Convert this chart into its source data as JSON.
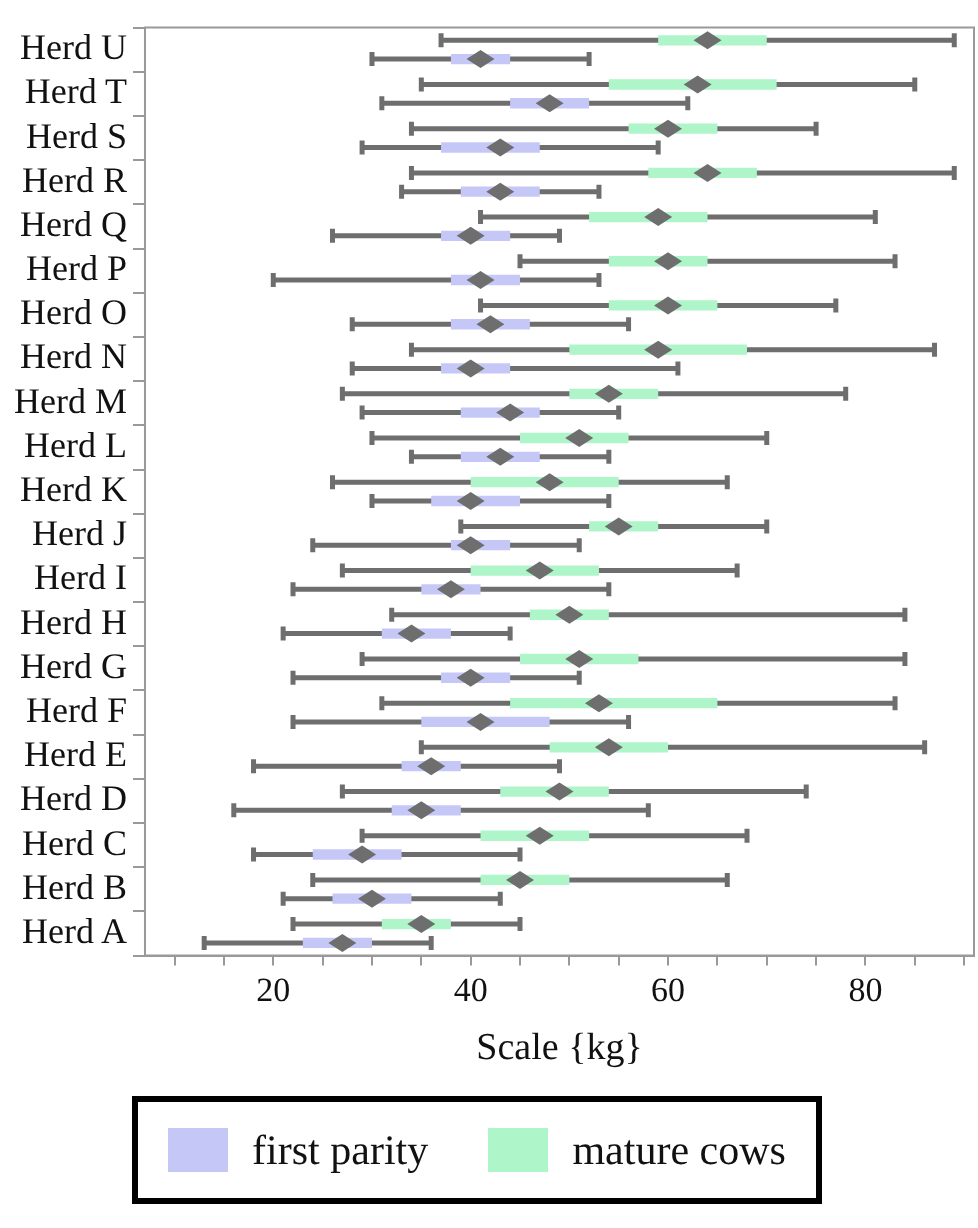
{
  "chart_data": {
    "type": "box",
    "orientation": "horizontal",
    "xlabel": "Scale {kg}",
    "legend": "bottom",
    "categories": [
      "Herd U",
      "Herd T",
      "Herd S",
      "Herd R",
      "Herd Q",
      "Herd P",
      "Herd O",
      "Herd N",
      "Herd M",
      "Herd L",
      "Herd K",
      "Herd J",
      "Herd I",
      "Herd H",
      "Herd G",
      "Herd F",
      "Herd E",
      "Herd D",
      "Herd C",
      "Herd B",
      "Herd A"
    ],
    "xlim": [
      7,
      91
    ],
    "xticks": [
      {
        "value": 10,
        "label": null
      },
      {
        "value": 15,
        "label": null
      },
      20,
      {
        "value": 25,
        "label": null
      },
      {
        "value": 30,
        "label": null
      },
      {
        "value": 35,
        "label": null
      },
      40,
      {
        "value": 45,
        "label": null
      },
      {
        "value": 50,
        "label": null
      },
      {
        "value": 55,
        "label": null
      },
      60,
      {
        "value": 65,
        "label": null
      },
      {
        "value": 70,
        "label": null
      },
      {
        "value": 75,
        "label": null
      },
      80,
      {
        "value": 85,
        "label": null
      },
      {
        "value": 90,
        "label": null
      }
    ],
    "series": [
      {
        "name": "first parity",
        "color": "#c5c8f7",
        "boxes": [
          {
            "low": 30,
            "q1": 38,
            "median": 41,
            "q3": 44,
            "high": 52
          },
          {
            "low": 31,
            "q1": 44,
            "median": 48,
            "q3": 52,
            "high": 62
          },
          {
            "low": 29,
            "q1": 37,
            "median": 43,
            "q3": 47,
            "high": 59
          },
          {
            "low": 33,
            "q1": 39,
            "median": 43,
            "q3": 47,
            "high": 53
          },
          {
            "low": 26,
            "q1": 37,
            "median": 40,
            "q3": 44,
            "high": 49
          },
          {
            "low": 20,
            "q1": 38,
            "median": 41,
            "q3": 45,
            "high": 53
          },
          {
            "low": 28,
            "q1": 38,
            "median": 42,
            "q3": 46,
            "high": 56
          },
          {
            "low": 28,
            "q1": 37,
            "median": 40,
            "q3": 44,
            "high": 61
          },
          {
            "low": 29,
            "q1": 39,
            "median": 44,
            "q3": 47,
            "high": 55
          },
          {
            "low": 34,
            "q1": 39,
            "median": 43,
            "q3": 47,
            "high": 54
          },
          {
            "low": 30,
            "q1": 36,
            "median": 40,
            "q3": 45,
            "high": 54
          },
          {
            "low": 24,
            "q1": 38,
            "median": 40,
            "q3": 44,
            "high": 51
          },
          {
            "low": 22,
            "q1": 35,
            "median": 38,
            "q3": 41,
            "high": 54
          },
          {
            "low": 21,
            "q1": 31,
            "median": 34,
            "q3": 38,
            "high": 44
          },
          {
            "low": 22,
            "q1": 37,
            "median": 40,
            "q3": 44,
            "high": 51
          },
          {
            "low": 22,
            "q1": 35,
            "median": 41,
            "q3": 48,
            "high": 56
          },
          {
            "low": 18,
            "q1": 33,
            "median": 36,
            "q3": 39,
            "high": 49
          },
          {
            "low": 16,
            "q1": 32,
            "median": 35,
            "q3": 39,
            "high": 58
          },
          {
            "low": 18,
            "q1": 24,
            "median": 29,
            "q3": 33,
            "high": 45
          },
          {
            "low": 21,
            "q1": 26,
            "median": 30,
            "q3": 34,
            "high": 43
          },
          {
            "low": 13,
            "q1": 23,
            "median": 27,
            "q3": 30,
            "high": 36
          }
        ]
      },
      {
        "name": "mature cows",
        "color": "#aef5c9",
        "boxes": [
          {
            "low": 37,
            "q1": 59,
            "median": 64,
            "q3": 70,
            "high": 89
          },
          {
            "low": 35,
            "q1": 54,
            "median": 63,
            "q3": 71,
            "high": 85
          },
          {
            "low": 34,
            "q1": 56,
            "median": 60,
            "q3": 65,
            "high": 75
          },
          {
            "low": 34,
            "q1": 58,
            "median": 64,
            "q3": 69,
            "high": 89
          },
          {
            "low": 41,
            "q1": 52,
            "median": 59,
            "q3": 64,
            "high": 81
          },
          {
            "low": 45,
            "q1": 54,
            "median": 60,
            "q3": 64,
            "high": 83
          },
          {
            "low": 41,
            "q1": 54,
            "median": 60,
            "q3": 65,
            "high": 77
          },
          {
            "low": 34,
            "q1": 50,
            "median": 59,
            "q3": 68,
            "high": 87
          },
          {
            "low": 27,
            "q1": 50,
            "median": 54,
            "q3": 59,
            "high": 78
          },
          {
            "low": 30,
            "q1": 45,
            "median": 51,
            "q3": 56,
            "high": 70
          },
          {
            "low": 26,
            "q1": 40,
            "median": 48,
            "q3": 55,
            "high": 66
          },
          {
            "low": 39,
            "q1": 52,
            "median": 55,
            "q3": 59,
            "high": 70
          },
          {
            "low": 27,
            "q1": 40,
            "median": 47,
            "q3": 53,
            "high": 67
          },
          {
            "low": 32,
            "q1": 46,
            "median": 50,
            "q3": 54,
            "high": 84
          },
          {
            "low": 29,
            "q1": 45,
            "median": 51,
            "q3": 57,
            "high": 84
          },
          {
            "low": 31,
            "q1": 44,
            "median": 53,
            "q3": 65,
            "high": 83
          },
          {
            "low": 35,
            "q1": 48,
            "median": 54,
            "q3": 60,
            "high": 86
          },
          {
            "low": 27,
            "q1": 43,
            "median": 49,
            "q3": 54,
            "high": 74
          },
          {
            "low": 29,
            "q1": 41,
            "median": 47,
            "q3": 52,
            "high": 68
          },
          {
            "low": 24,
            "q1": 41,
            "median": 45,
            "q3": 50,
            "high": 66
          },
          {
            "low": 22,
            "q1": 31,
            "median": 35,
            "q3": 38,
            "high": 45
          }
        ]
      }
    ]
  }
}
